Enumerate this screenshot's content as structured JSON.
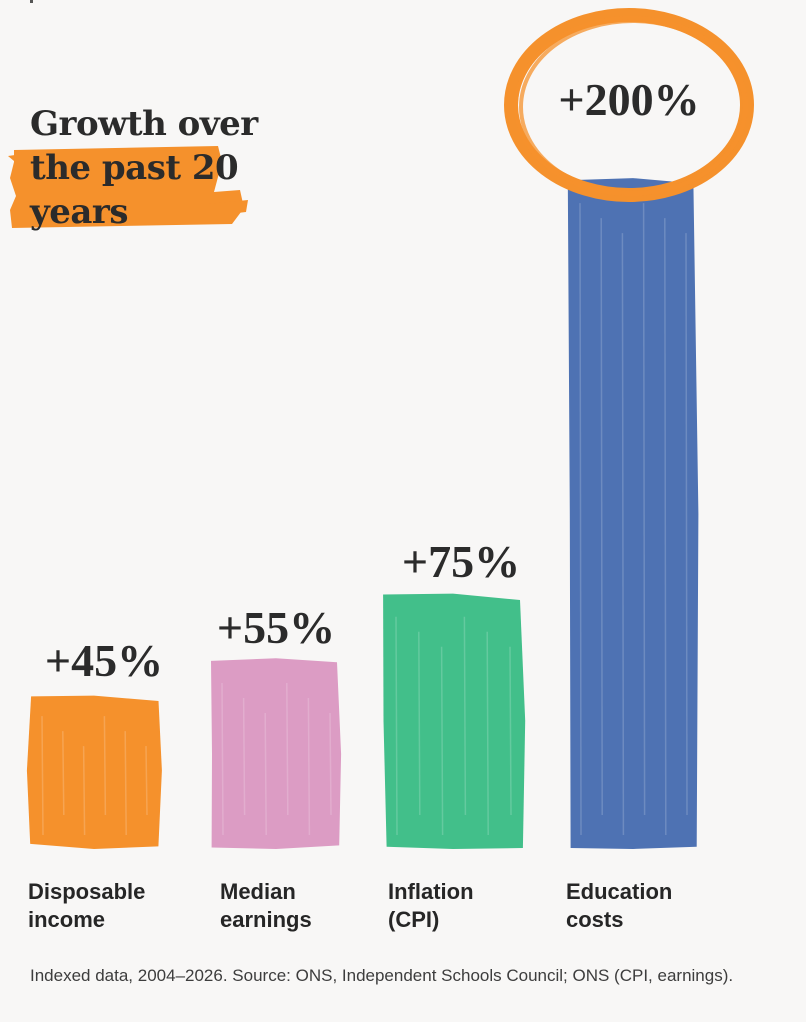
{
  "title": "Growth over the past 20 years",
  "source": "Indexed data, 2004–2026. Source: ONS,  Independent Schools Council; ONS (CPI, earnings).",
  "colors": {
    "disposable_income": "#f5912c",
    "median_earnings": "#dc9cc4",
    "inflation": "#42bf8a",
    "education": "#4e72b3",
    "highlight": "#f5912c"
  },
  "chart_data": {
    "type": "bar",
    "categories": [
      "Disposable income",
      "Median earnings",
      "Inflation (CPI)",
      "Education costs"
    ],
    "values": [
      45,
      55,
      75,
      200
    ],
    "value_labels": [
      "+45%",
      "+55%",
      "+75%",
      "+200%"
    ],
    "category_labels": [
      "Disposable\nincome",
      "Median\nearnings",
      "Inflation\n(CPI)",
      "Education\ncosts"
    ],
    "unit": "%",
    "ylim": [
      0,
      210
    ],
    "grid": false,
    "legend": "none",
    "highlighted_category": "Education costs"
  }
}
